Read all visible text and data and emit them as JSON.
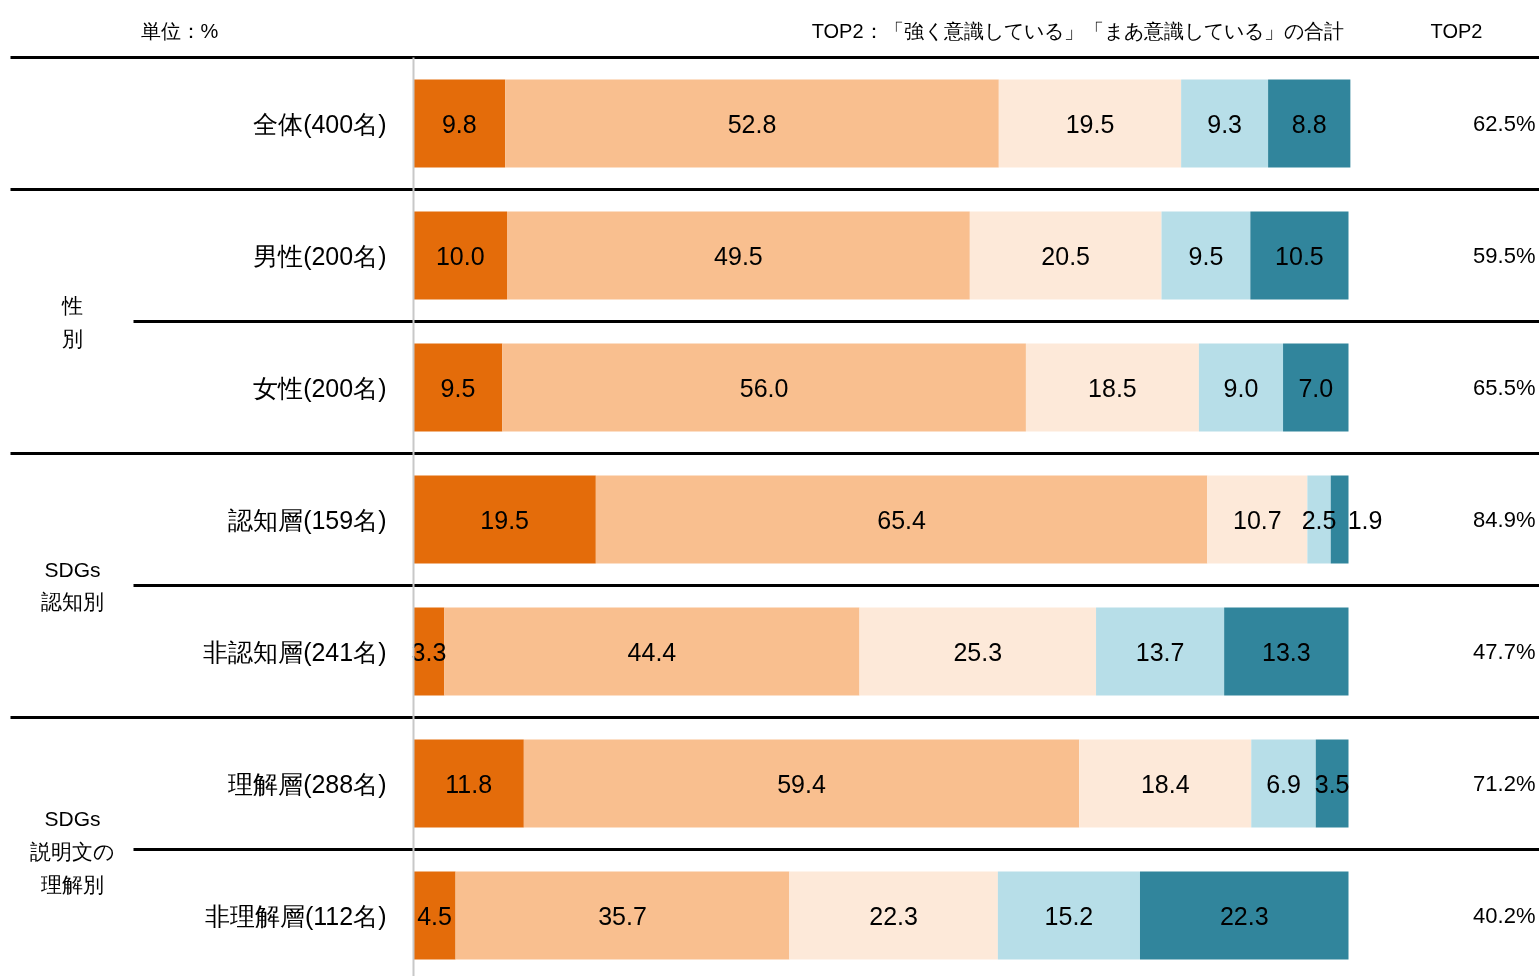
{
  "chart_data": {
    "type": "bar",
    "orientation": "horizontal",
    "stacked": true,
    "tick_labels": "y",
    "xlim": [
      0,
      100
    ],
    "categories": [
      "全体(400名)",
      "男性(200名)",
      "女性(200名)",
      "認知層(159名)",
      "非認知層(241名)",
      "理解層(288名)",
      "非理解層(112名)"
    ],
    "series": [
      {
        "color": "#e46c0a",
        "values": [
          9.8,
          10.0,
          9.5,
          19.5,
          3.3,
          11.8,
          4.5
        ],
        "value_labels": [
          "9.8",
          "10.0",
          "9.5",
          "19.5",
          "3.3",
          "11.8",
          "4.5"
        ]
      },
      {
        "color": "#f9bf8f",
        "values": [
          52.8,
          49.5,
          56.0,
          65.4,
          44.4,
          59.4,
          35.7
        ],
        "value_labels": [
          "52.8",
          "49.5",
          "56.0",
          "65.4",
          "44.4",
          "59.4",
          "35.7"
        ]
      },
      {
        "color": "#fde9d9",
        "values": [
          19.5,
          20.5,
          18.5,
          10.7,
          25.3,
          18.4,
          22.3
        ],
        "value_labels": [
          "19.5",
          "20.5",
          "18.5",
          "10.7",
          "25.3",
          "18.4",
          "22.3"
        ]
      },
      {
        "color": "#b7dee8",
        "values": [
          9.3,
          9.5,
          9.0,
          2.5,
          13.7,
          6.9,
          15.2
        ],
        "value_labels": [
          "9.3",
          "9.5",
          "9.0",
          "2.5",
          "13.7",
          "6.9",
          "15.2"
        ]
      },
      {
        "color": "#31859c",
        "values": [
          8.8,
          10.5,
          7.0,
          1.9,
          13.3,
          3.5,
          22.3
        ],
        "value_labels": [
          "8.8",
          "10.5",
          "7.0",
          "1.9",
          "13.3",
          "3.5",
          "22.3"
        ]
      }
    ],
    "annotations": [
      "単位：%",
      "TOP2：「強く意識している」「まあ意識している」の合計",
      "TOP2",
      "62.5%",
      "59.5%",
      "65.5%",
      "84.9%",
      "47.7%",
      "71.2%",
      "40.2%",
      "性",
      "別",
      "SDGs",
      "認知別",
      "SDGs",
      "説明文の",
      "理解別"
    ]
  }
}
